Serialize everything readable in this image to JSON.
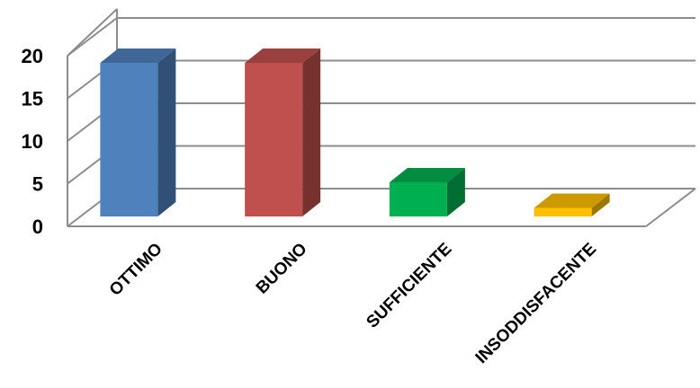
{
  "chart_data": {
    "type": "bar",
    "categories": [
      "OTTIMO",
      "BUONO",
      "SUFFICIENTE",
      "INSODDISFACENTE"
    ],
    "values": [
      18,
      18,
      4,
      1
    ],
    "ylim": [
      0,
      20
    ],
    "yticks": [
      0,
      5,
      10,
      15,
      20
    ],
    "grid": true,
    "legend": "none",
    "colors": [
      "#4F81BD",
      "#C0504D",
      "#00B050",
      "#FFC000"
    ]
  }
}
